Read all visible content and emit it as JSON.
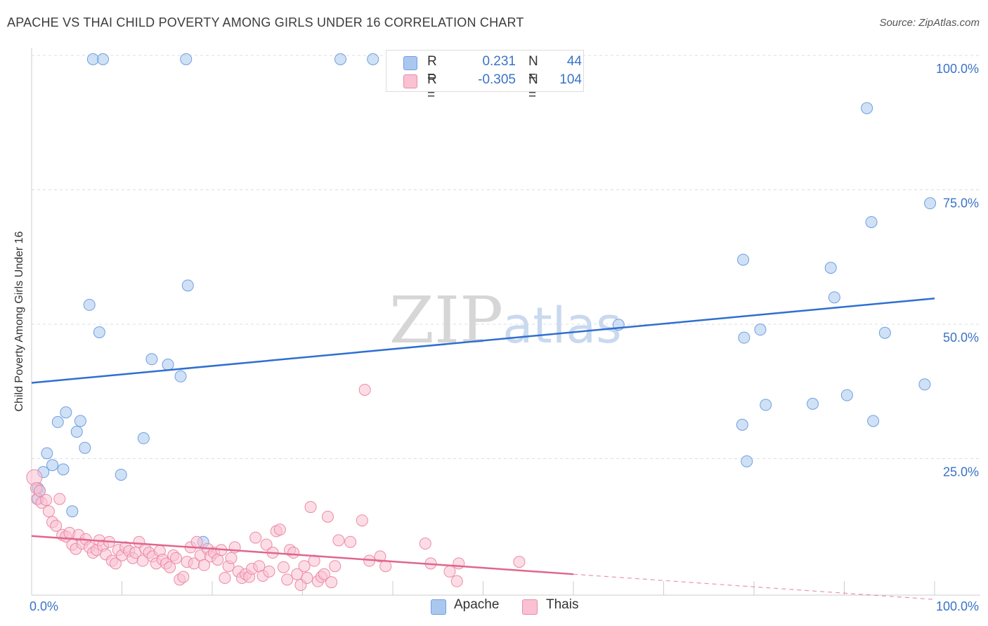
{
  "title": "APACHE VS THAI CHILD POVERTY AMONG GIRLS UNDER 16 CORRELATION CHART",
  "source": "Source: ZipAtlas.com",
  "legend_stats": [
    {
      "r_label": "R =",
      "r_value": "0.231",
      "n_label": "N =",
      "n_value": "44",
      "color": "#aac8ef",
      "border": "#6d9fe0"
    },
    {
      "r_label": "R =",
      "r_value": "-0.305",
      "n_label": "N =",
      "n_value": "104",
      "color": "#f9c1d1",
      "border": "#eb8aa8"
    }
  ],
  "bottom_legend": [
    {
      "label": "Apache",
      "color": "#aac8ef",
      "border": "#6d9fe0"
    },
    {
      "label": "Thais",
      "color": "#f9c1d1",
      "border": "#eb8aa8"
    }
  ],
  "watermark": {
    "zip": "ZIP",
    "atlas": "atlas"
  },
  "chart_data": {
    "type": "scatter",
    "title": "APACHE VS THAI CHILD POVERTY AMONG GIRLS UNDER 16 CORRELATION CHART",
    "xlabel": "",
    "ylabel": "Child Poverty Among Girls Under 16",
    "xlim": [
      0,
      100
    ],
    "ylim": [
      0,
      100
    ],
    "x_tick_labels": [
      "0.0%",
      "100.0%"
    ],
    "y_ticks": [
      25,
      50,
      75,
      100
    ],
    "y_tick_labels": [
      "25.0%",
      "50.0%",
      "75.0%",
      "100.0%"
    ],
    "grid": true,
    "series": [
      {
        "name": "Apache",
        "color": "#6d9fe0",
        "fill": "#aac8ef",
        "trend": {
          "x": [
            0,
            100
          ],
          "y": [
            39.1,
            54.8
          ],
          "color": "#2f6fd0"
        },
        "points": [
          [
            0.7,
            19.5
          ],
          [
            0.7,
            17.5
          ],
          [
            1.3,
            22.5
          ],
          [
            1.7,
            26.0
          ],
          [
            2.3,
            23.8
          ],
          [
            2.9,
            31.8
          ],
          [
            3.5,
            23.0
          ],
          [
            3.8,
            33.6
          ],
          [
            4.5,
            15.2
          ],
          [
            5.0,
            30.0
          ],
          [
            5.4,
            32.0
          ],
          [
            5.9,
            27.0
          ],
          [
            6.4,
            53.6
          ],
          [
            7.5,
            48.5
          ],
          [
            6.8,
            99.3
          ],
          [
            7.9,
            99.3
          ],
          [
            9.9,
            22.0
          ],
          [
            12.4,
            28.8
          ],
          [
            13.3,
            43.5
          ],
          [
            15.1,
            42.5
          ],
          [
            16.5,
            40.3
          ],
          [
            17.3,
            57.2
          ],
          [
            17.1,
            99.3
          ],
          [
            19.0,
            9.5
          ],
          [
            34.2,
            99.3
          ],
          [
            37.8,
            99.3
          ],
          [
            65.0,
            49.9
          ],
          [
            78.7,
            31.3
          ],
          [
            78.8,
            62.0
          ],
          [
            78.9,
            47.5
          ],
          [
            79.2,
            24.5
          ],
          [
            80.7,
            49.0
          ],
          [
            81.3,
            35.0
          ],
          [
            86.5,
            35.2
          ],
          [
            88.5,
            60.5
          ],
          [
            88.9,
            55.0
          ],
          [
            90.3,
            36.8
          ],
          [
            92.5,
            90.2
          ],
          [
            93.0,
            69.0
          ],
          [
            93.2,
            32.0
          ],
          [
            94.5,
            48.4
          ],
          [
            98.9,
            38.8
          ],
          [
            99.5,
            72.5
          ],
          [
            0.9,
            19.0
          ]
        ]
      },
      {
        "name": "Thais",
        "color": "#eb8aa8",
        "fill": "#f9c1d1",
        "trend": {
          "x": [
            0,
            60
          ],
          "y": [
            10.6,
            3.5
          ],
          "dashed_x": [
            60,
            100
          ],
          "dashed_y": [
            3.5,
            -1.2
          ],
          "color": "#e0668e"
        },
        "points": [
          [
            0.3,
            21.5
          ],
          [
            0.5,
            19.5
          ],
          [
            0.6,
            17.5
          ],
          [
            0.9,
            19.0
          ],
          [
            1.1,
            16.8
          ],
          [
            1.6,
            17.3
          ],
          [
            1.9,
            15.2
          ],
          [
            2.3,
            13.2
          ],
          [
            2.7,
            12.5
          ],
          [
            3.1,
            17.5
          ],
          [
            3.4,
            10.8
          ],
          [
            3.8,
            10.5
          ],
          [
            4.2,
            11.2
          ],
          [
            4.5,
            9.0
          ],
          [
            4.9,
            8.2
          ],
          [
            5.2,
            10.8
          ],
          [
            5.6,
            9.2
          ],
          [
            6.0,
            10.0
          ],
          [
            6.4,
            8.5
          ],
          [
            6.8,
            7.5
          ],
          [
            7.2,
            8.0
          ],
          [
            7.5,
            9.8
          ],
          [
            7.9,
            8.8
          ],
          [
            8.2,
            7.2
          ],
          [
            8.6,
            9.5
          ],
          [
            8.9,
            6.0
          ],
          [
            9.3,
            5.5
          ],
          [
            9.6,
            8.0
          ],
          [
            10.0,
            7.0
          ],
          [
            10.4,
            8.5
          ],
          [
            10.8,
            7.8
          ],
          [
            11.2,
            6.5
          ],
          [
            11.5,
            7.5
          ],
          [
            11.9,
            9.5
          ],
          [
            12.3,
            6.0
          ],
          [
            12.6,
            8.2
          ],
          [
            13.0,
            7.5
          ],
          [
            13.4,
            6.8
          ],
          [
            13.8,
            5.5
          ],
          [
            14.2,
            7.8
          ],
          [
            14.5,
            6.2
          ],
          [
            14.9,
            5.5
          ],
          [
            15.3,
            4.8
          ],
          [
            15.7,
            7.0
          ],
          [
            16.0,
            6.5
          ],
          [
            16.4,
            2.5
          ],
          [
            16.8,
            3.0
          ],
          [
            17.2,
            5.8
          ],
          [
            17.6,
            8.5
          ],
          [
            18.0,
            5.5
          ],
          [
            18.3,
            9.5
          ],
          [
            18.7,
            7.0
          ],
          [
            19.1,
            5.2
          ],
          [
            19.5,
            8.2
          ],
          [
            19.8,
            6.8
          ],
          [
            20.2,
            7.5
          ],
          [
            20.6,
            6.2
          ],
          [
            21.0,
            8.0
          ],
          [
            21.4,
            2.8
          ],
          [
            21.8,
            5.0
          ],
          [
            22.1,
            6.5
          ],
          [
            22.5,
            8.5
          ],
          [
            22.9,
            4.0
          ],
          [
            23.3,
            2.8
          ],
          [
            23.7,
            3.5
          ],
          [
            24.1,
            3.0
          ],
          [
            24.4,
            4.5
          ],
          [
            24.8,
            10.3
          ],
          [
            25.2,
            5.0
          ],
          [
            25.6,
            3.2
          ],
          [
            26.0,
            9.0
          ],
          [
            26.3,
            4.0
          ],
          [
            26.7,
            7.5
          ],
          [
            27.1,
            11.5
          ],
          [
            27.5,
            11.8
          ],
          [
            27.9,
            4.8
          ],
          [
            28.3,
            2.5
          ],
          [
            28.6,
            8.0
          ],
          [
            29.0,
            7.5
          ],
          [
            29.4,
            3.5
          ],
          [
            29.8,
            1.5
          ],
          [
            30.2,
            5.0
          ],
          [
            30.5,
            2.8
          ],
          [
            30.9,
            16.0
          ],
          [
            31.3,
            6.0
          ],
          [
            31.7,
            2.2
          ],
          [
            32.1,
            3.0
          ],
          [
            32.4,
            3.5
          ],
          [
            32.8,
            14.2
          ],
          [
            33.2,
            2.0
          ],
          [
            33.6,
            5.0
          ],
          [
            34.0,
            9.8
          ],
          [
            35.3,
            9.5
          ],
          [
            36.6,
            13.5
          ],
          [
            36.9,
            37.8
          ],
          [
            37.4,
            6.0
          ],
          [
            38.6,
            6.8
          ],
          [
            39.2,
            5.0
          ],
          [
            43.6,
            9.2
          ],
          [
            44.2,
            5.5
          ],
          [
            46.3,
            4.0
          ],
          [
            47.1,
            2.2
          ],
          [
            47.3,
            5.5
          ],
          [
            54.0,
            5.8
          ]
        ]
      }
    ]
  }
}
